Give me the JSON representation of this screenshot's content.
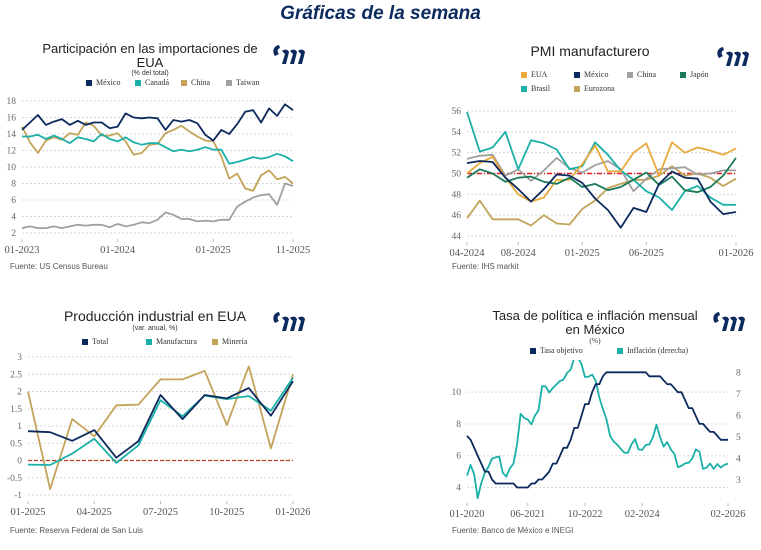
{
  "page": {
    "title": "Gráficas de la semana"
  },
  "chart_data": [
    {
      "id": "imports",
      "type": "line",
      "title": "Participación en las importaciones de EUA",
      "subtitle": "(% del total)",
      "source": "Fuente: US Census Bureau",
      "ylim": [
        2,
        18
      ],
      "yticks": [
        2,
        4,
        6,
        8,
        10,
        12,
        14,
        16,
        18
      ],
      "xticks": [
        {
          "i": 0,
          "label": "01-2023"
        },
        {
          "i": 12,
          "label": "01-2024"
        },
        {
          "i": 24,
          "label": "01-2025"
        },
        {
          "i": 34,
          "label": "11-2025"
        }
      ],
      "grid": true,
      "legend_position": "top",
      "series": [
        {
          "name": "México",
          "color": "#0c2a5e",
          "values": [
            14.5,
            15.4,
            16.3,
            15.1,
            15.5,
            15.8,
            15.1,
            15.6,
            15.1,
            15.4,
            15.4,
            14.7,
            14.9,
            16.5,
            16.0,
            15.9,
            16.0,
            15.9,
            14.5,
            15.7,
            15.5,
            15.7,
            15.3,
            13.9,
            13.2,
            14.5,
            14.0,
            15.2,
            16.7,
            16.9,
            15.4,
            17.1,
            16.2,
            17.6,
            16.9
          ]
        },
        {
          "name": "Canadá",
          "color": "#1ab0a8",
          "values": [
            13.7,
            13.7,
            13.9,
            13.4,
            13.8,
            13.4,
            12.9,
            13.6,
            13.4,
            13.1,
            14.0,
            13.4,
            13.1,
            13.6,
            13.0,
            12.7,
            12.9,
            12.9,
            12.4,
            11.9,
            12.1,
            11.9,
            12.1,
            12.4,
            12.1,
            12.1,
            10.4,
            10.6,
            10.9,
            11.2,
            11.0,
            11.2,
            11.6,
            11.3,
            10.7
          ]
        },
        {
          "name": "China",
          "color": "#c4a35a",
          "values": [
            14.9,
            13.0,
            11.7,
            13.2,
            13.6,
            13.3,
            14.1,
            13.9,
            15.4,
            15.0,
            13.8,
            13.8,
            14.1,
            13.1,
            11.5,
            11.7,
            12.7,
            12.8,
            14.1,
            14.5,
            15.0,
            14.3,
            13.7,
            13.2,
            13.1,
            11.3,
            8.6,
            9.2,
            7.4,
            7.1,
            9.0,
            9.6,
            8.5,
            8.8,
            8.0
          ]
        },
        {
          "name": "Taiwan",
          "color": "#a0a0a0",
          "values": [
            2.6,
            2.8,
            2.6,
            2.6,
            2.8,
            2.6,
            2.8,
            3.0,
            2.9,
            3.0,
            3.0,
            2.7,
            3.1,
            2.8,
            3.0,
            3.3,
            3.2,
            3.6,
            4.5,
            4.2,
            3.7,
            3.7,
            3.4,
            3.5,
            3.4,
            3.6,
            3.6,
            5.2,
            5.8,
            6.3,
            6.6,
            6.7,
            5.4,
            8.0,
            7.7
          ]
        }
      ]
    },
    {
      "id": "pmi",
      "type": "line",
      "title": "PMI manufacturero",
      "source": "Fuente: IHS markit",
      "ylim": [
        44,
        56
      ],
      "yticks": [
        44,
        46,
        48,
        50,
        52,
        54,
        56
      ],
      "xticks": [
        {
          "i": 0,
          "label": "04-2024"
        },
        {
          "i": 4,
          "label": "08-2024"
        },
        {
          "i": 9,
          "label": "01-2025"
        },
        {
          "i": 14,
          "label": "06-2025"
        },
        {
          "i": 21,
          "label": "01-2026"
        }
      ],
      "reference_line": 50,
      "grid": true,
      "legend_position": "top",
      "series": [
        {
          "name": "EUA",
          "color": "#e8a93a",
          "values": [
            50.0,
            51.0,
            51.6,
            49.6,
            48.0,
            47.3,
            47.7,
            49.4,
            49.4,
            50.9,
            52.7,
            50.2,
            50.2,
            52.0,
            52.9,
            49.8,
            53.0,
            52.0,
            52.5,
            52.2,
            51.8,
            52.4
          ]
        },
        {
          "name": "México",
          "color": "#0c2a5e",
          "values": [
            51.0,
            51.2,
            51.1,
            49.6,
            48.5,
            47.3,
            48.5,
            49.9,
            49.8,
            49.1,
            47.6,
            46.5,
            44.8,
            46.7,
            46.3,
            49.0,
            50.2,
            49.6,
            49.5,
            47.3,
            46.1,
            46.3
          ]
        },
        {
          "name": "China",
          "color": "#a0a0a0",
          "values": [
            51.4,
            51.7,
            51.8,
            49.8,
            50.4,
            49.3,
            50.3,
            51.5,
            50.5,
            50.1,
            50.8,
            51.2,
            50.4,
            48.3,
            49.5,
            50.4,
            50.5,
            50.6,
            49.9,
            50.0,
            50.3,
            50.3
          ]
        },
        {
          "name": "Japón",
          "color": "#1a7a5a",
          "values": [
            49.6,
            50.4,
            50.0,
            49.2,
            49.6,
            49.7,
            49.2,
            49.0,
            49.6,
            48.7,
            49.0,
            48.4,
            48.7,
            49.4,
            50.1,
            48.9,
            49.7,
            48.4,
            48.2,
            48.7,
            49.8,
            51.5
          ]
        },
        {
          "name": "Brasil",
          "color": "#1ab0a8",
          "values": [
            55.9,
            52.1,
            52.5,
            54.0,
            50.4,
            53.2,
            52.9,
            52.3,
            50.4,
            50.7,
            53.0,
            51.8,
            50.3,
            49.4,
            48.3,
            47.7,
            46.5,
            48.3,
            48.8,
            47.7,
            47.0,
            47.0
          ]
        },
        {
          "name": "Eurozona",
          "color": "#c4a35a",
          "values": [
            45.7,
            47.4,
            45.6,
            45.6,
            45.6,
            45.0,
            46.0,
            45.2,
            45.1,
            46.6,
            47.4,
            48.6,
            49.0,
            49.4,
            49.4,
            49.8,
            50.7,
            49.8,
            50.0,
            49.6,
            48.8,
            49.5
          ]
        }
      ]
    },
    {
      "id": "industrial",
      "type": "line",
      "title": "Producción industrial en EUA",
      "subtitle": "(var. anual, %)",
      "source": "Fuente: Reserva Federal de San Luis",
      "ylim": [
        -1,
        3
      ],
      "yticks": [
        -1,
        -0.5,
        0,
        0.5,
        1,
        1.5,
        2,
        2.5,
        3
      ],
      "xticks": [
        {
          "i": 0,
          "label": "01-2025"
        },
        {
          "i": 3,
          "label": "04-2025"
        },
        {
          "i": 6,
          "label": "07-2025"
        },
        {
          "i": 9,
          "label": "10-2025"
        },
        {
          "i": 12,
          "label": "01-2026"
        }
      ],
      "reference_line": 0,
      "grid": true,
      "legend_position": "top",
      "series": [
        {
          "name": "Total",
          "color": "#0c2a5e",
          "values": [
            0.85,
            0.82,
            0.57,
            0.88,
            0.08,
            0.56,
            1.9,
            1.2,
            1.9,
            1.8,
            2.1,
            1.3,
            2.3
          ]
        },
        {
          "name": "Manufactura",
          "color": "#1ab0a8",
          "values": [
            -0.12,
            -0.13,
            0.2,
            0.63,
            -0.07,
            0.44,
            1.75,
            1.28,
            1.88,
            1.78,
            1.87,
            1.44,
            2.4
          ]
        },
        {
          "name": "Minería",
          "color": "#c4a35a",
          "values": [
            2.0,
            -0.83,
            1.2,
            0.7,
            1.6,
            1.62,
            2.35,
            2.35,
            2.6,
            1.03,
            2.73,
            0.35,
            2.5
          ]
        }
      ]
    },
    {
      "id": "rates",
      "type": "line",
      "title": "Tasa de política e inflación mensual en México",
      "subtitle": "(%)",
      "source": "Fuente: Banco de México e INEGI",
      "ylim_left": [
        3.4,
        11.9
      ],
      "yticks_left": [
        4,
        6,
        8,
        10
      ],
      "ylim_right": [
        2.2,
        8.5
      ],
      "yticks_right": [
        3,
        4,
        5,
        6,
        7,
        8
      ],
      "xticks": [
        {
          "i": 0,
          "label": "01-2020"
        },
        {
          "i": 17,
          "label": "06-2021"
        },
        {
          "i": 33,
          "label": "10-2022"
        },
        {
          "i": 49,
          "label": "02-2024"
        },
        {
          "i": 73,
          "label": "02-2026"
        }
      ],
      "grid": true,
      "legend_position": "top",
      "series": [
        {
          "name": "Tasa objetivo",
          "axis": "left",
          "color": "#0c2a5e",
          "values": [
            7.25,
            7.0,
            6.5,
            6.0,
            5.5,
            5.0,
            5.0,
            4.5,
            4.25,
            4.25,
            4.25,
            4.25,
            4.25,
            4.25,
            4.0,
            4.0,
            4.0,
            4.0,
            4.25,
            4.25,
            4.5,
            4.5,
            4.75,
            5.0,
            5.5,
            5.5,
            6.0,
            6.5,
            6.5,
            7.0,
            7.75,
            7.75,
            8.5,
            9.25,
            9.25,
            10.0,
            10.5,
            10.5,
            11.0,
            11.25,
            11.25,
            11.25,
            11.25,
            11.25,
            11.25,
            11.25,
            11.25,
            11.25,
            11.25,
            11.25,
            11.25,
            11.0,
            11.0,
            11.0,
            11.0,
            10.75,
            10.5,
            10.5,
            10.25,
            10.0,
            10.0,
            9.5,
            9.0,
            9.0,
            8.5,
            8.0,
            8.0,
            7.75,
            7.5,
            7.5,
            7.25,
            7.0,
            7.0,
            7.0
          ]
        },
        {
          "name": "Inflación (derecha)",
          "axis": "right",
          "color": "#1ab0a8",
          "values": [
            3.2,
            3.7,
            3.25,
            2.15,
            2.85,
            3.35,
            3.62,
            3.99,
            4.05,
            4.09,
            3.33,
            3.15,
            3.54,
            3.76,
            4.67,
            6.08,
            5.89,
            5.81,
            5.59,
            6.0,
            6.24,
            7.37,
            7.36,
            7.07,
            7.28,
            7.45,
            7.62,
            7.68,
            7.99,
            8.15,
            8.7,
            8.7,
            8.41,
            7.8,
            7.82,
            7.91,
            7.62,
            6.85,
            6.3,
            5.84,
            5.06,
            4.79,
            4.64,
            4.45,
            4.27,
            4.26,
            4.66,
            4.9,
            4.42,
            4.4,
            4.63,
            4.65,
            4.98,
            5.57,
            4.98,
            4.55,
            4.76,
            4.42,
            4.21,
            3.59,
            3.65,
            3.77,
            3.8,
            3.99,
            4.42,
            4.32,
            3.51,
            3.57,
            3.76,
            3.51,
            3.74,
            3.57,
            3.7,
            3.76
          ]
        }
      ]
    }
  ]
}
